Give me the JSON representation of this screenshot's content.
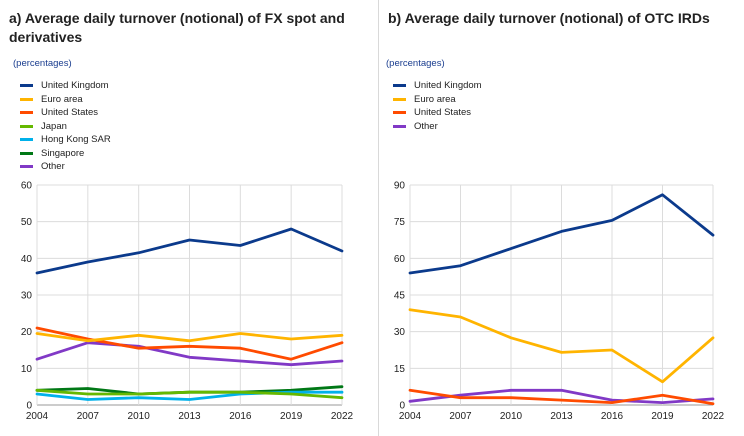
{
  "chart_data": [
    {
      "type": "line",
      "title": "a) Average daily turnover (notional) of FX spot and derivatives",
      "subtitle": "(percentages)",
      "x": [
        "2004",
        "2007",
        "2010",
        "2013",
        "2016",
        "2019",
        "2022"
      ],
      "ylim": [
        0,
        60
      ],
      "yticks": [
        "0",
        "10",
        "20",
        "30",
        "40",
        "50",
        "60"
      ],
      "grid": true,
      "legend_position": "top-left",
      "series": [
        {
          "name": "United Kingdom",
          "color": "#0b3a8c",
          "values": [
            36,
            39,
            41.5,
            45,
            43.5,
            48,
            42
          ]
        },
        {
          "name": "Euro area",
          "color": "#ffb400",
          "values": [
            19.5,
            17.5,
            19,
            17.5,
            19.5,
            18,
            19
          ]
        },
        {
          "name": "United States",
          "color": "#ff4b00",
          "values": [
            21,
            18,
            15.5,
            16,
            15.5,
            12.5,
            17
          ]
        },
        {
          "name": "Japan",
          "color": "#65b800",
          "values": [
            4,
            3,
            3,
            3.5,
            3.5,
            3,
            2
          ]
        },
        {
          "name": "Hong Kong SAR",
          "color": "#00b1ea",
          "values": [
            3,
            1.5,
            2,
            1.5,
            3,
            3.5,
            3.5
          ]
        },
        {
          "name": "Singapore",
          "color": "#007816",
          "values": [
            4,
            4.5,
            3,
            3.5,
            3.5,
            4,
            5
          ]
        },
        {
          "name": "Other",
          "color": "#8139c6",
          "values": [
            12.5,
            17,
            16,
            13,
            12,
            11,
            12
          ]
        }
      ]
    },
    {
      "type": "line",
      "title": "b) Average daily turnover (notional) of OTC IRDs",
      "subtitle": "(percentages)",
      "x": [
        "2004",
        "2007",
        "2010",
        "2013",
        "2016",
        "2019",
        "2022"
      ],
      "ylim": [
        0,
        90
      ],
      "yticks": [
        "0",
        "15",
        "30",
        "45",
        "60",
        "75",
        "90"
      ],
      "grid": true,
      "legend_position": "top-left",
      "series": [
        {
          "name": "United Kingdom",
          "color": "#0b3a8c",
          "values": [
            54,
            57,
            64,
            71,
            75.5,
            86,
            69.5
          ]
        },
        {
          "name": "Euro area",
          "color": "#ffb400",
          "values": [
            39,
            36,
            27.5,
            21.5,
            22.5,
            9.5,
            27.5
          ]
        },
        {
          "name": "United States",
          "color": "#ff4b00",
          "values": [
            6,
            3,
            3,
            2,
            1,
            4,
            0.5
          ]
        },
        {
          "name": "Other",
          "color": "#8139c6",
          "values": [
            1.5,
            4,
            6,
            6,
            2,
            1,
            2.5
          ]
        }
      ]
    }
  ]
}
